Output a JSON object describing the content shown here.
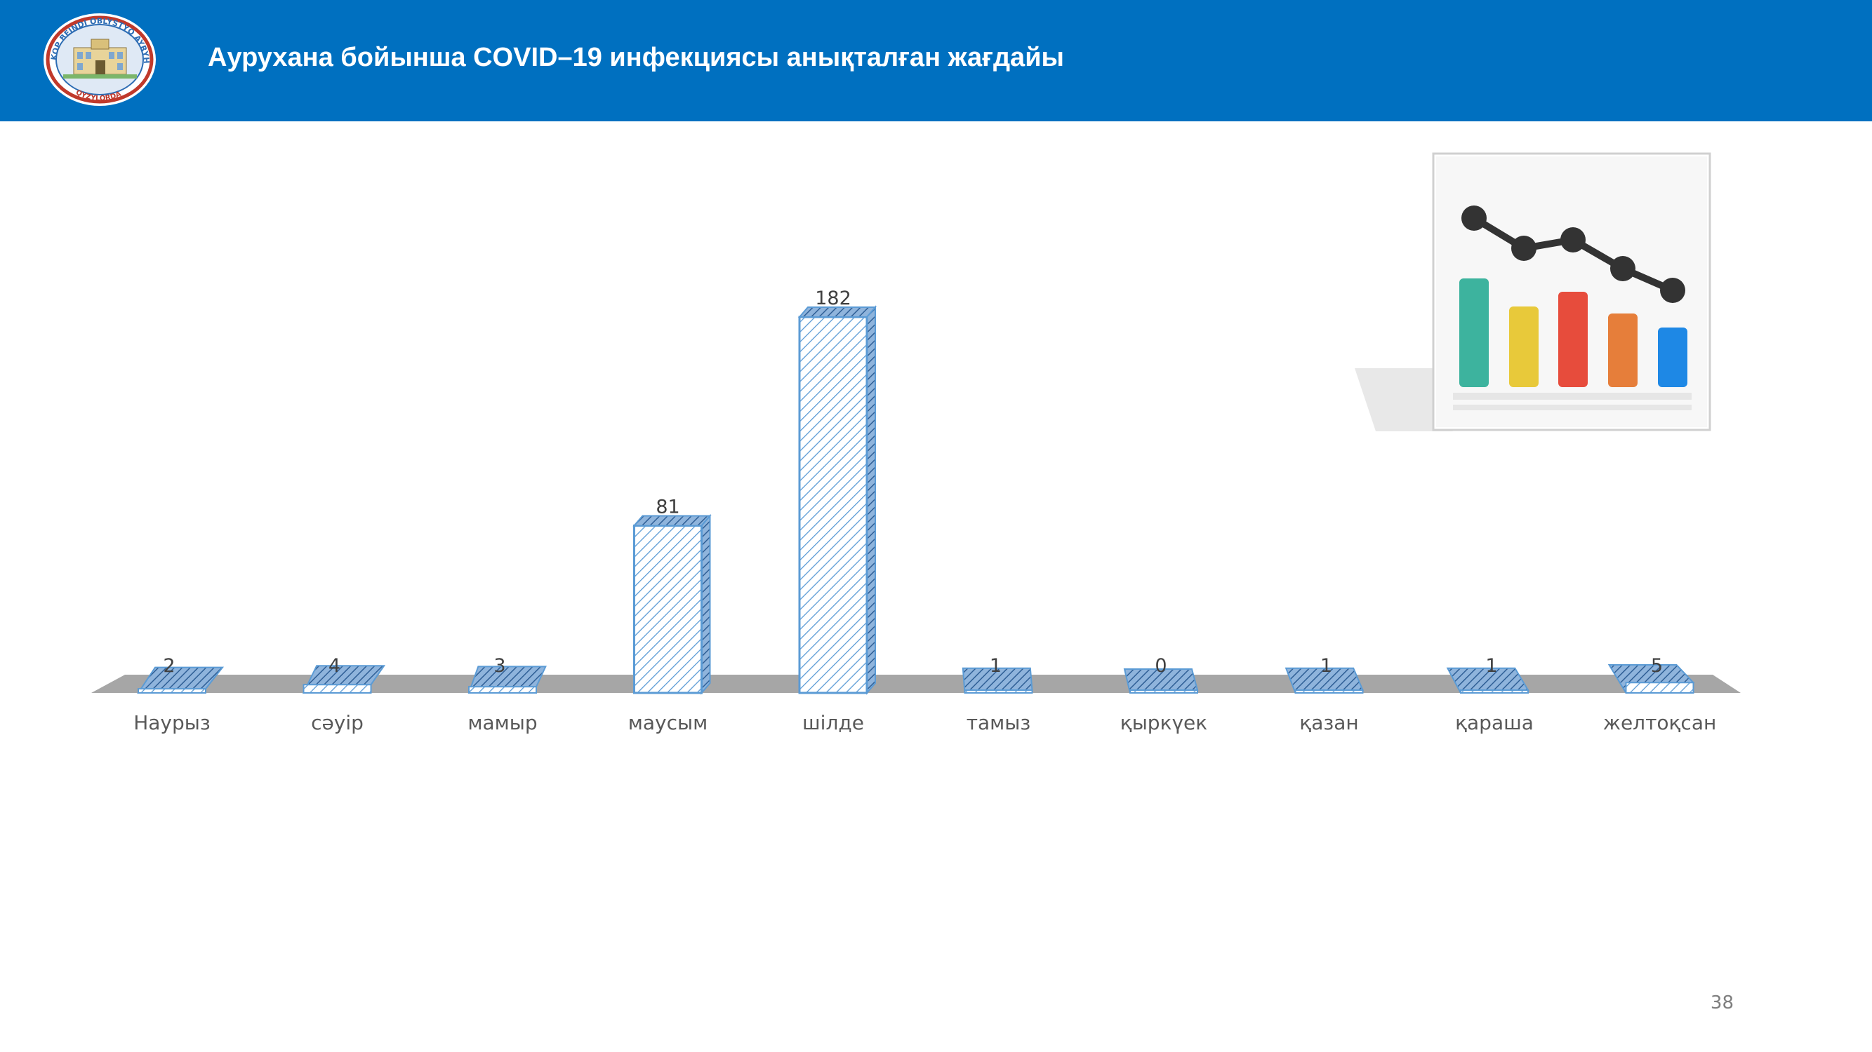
{
  "header": {
    "title": "Аурухана бойынша COVID–19 инфекциясы анықталған жағдайы",
    "logo_text_top": "KOP BEINDI OBLYSTYQ AYRYHANA",
    "logo_text_bottom": "QYZYLORDA"
  },
  "chart_data": {
    "type": "bar",
    "categories": [
      "Наурыз",
      "сәуір",
      "мамыр",
      "маусым",
      "шілде",
      "тамыз",
      "қыркүек",
      "қазан",
      "қараша",
      "желтоқсан"
    ],
    "values": [
      2,
      4,
      3,
      81,
      182,
      1,
      0,
      1,
      1,
      5
    ],
    "ylim": [
      0,
      182
    ],
    "grid": false,
    "legend": "none",
    "style": "3d-hatched",
    "bar_color": "#5b9bd5",
    "floor_color": "#a6a6a6"
  },
  "clipart_icon": "chart-decoration-icon",
  "page_number": "38"
}
